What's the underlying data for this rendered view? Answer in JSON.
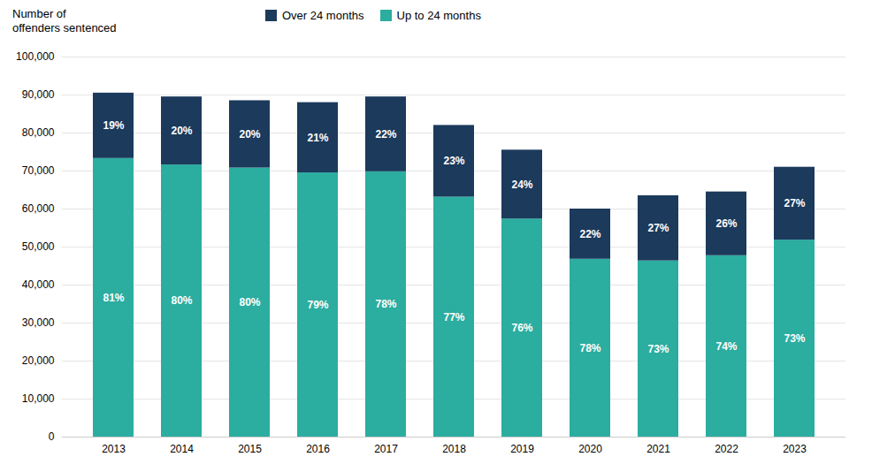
{
  "chart_data": {
    "type": "bar",
    "stacked": true,
    "categories": [
      "2013",
      "2014",
      "2015",
      "2016",
      "2017",
      "2018",
      "2019",
      "2020",
      "2021",
      "2022",
      "2023"
    ],
    "series": [
      {
        "name": "Up to 24 months",
        "color": "#2BADA0",
        "values": [
          73305,
          71600,
          70800,
          69520,
          69810,
          63140,
          57380,
          46800,
          46355,
          47730,
          51830
        ],
        "share_labels": [
          "81%",
          "80%",
          "80%",
          "79%",
          "78%",
          "77%",
          "76%",
          "78%",
          "73%",
          "74%",
          "73%"
        ]
      },
      {
        "name": "Over 24 months",
        "color": "#1B3A5C",
        "values": [
          17195,
          17900,
          17700,
          18480,
          19690,
          18860,
          18120,
          13200,
          17145,
          16770,
          19170
        ],
        "share_labels": [
          "19%",
          "20%",
          "20%",
          "21%",
          "22%",
          "23%",
          "24%",
          "22%",
          "27%",
          "26%",
          "27%"
        ]
      }
    ],
    "ylabel": "Number of\noffenders sentenced",
    "ylim": [
      0,
      100000
    ],
    "yticks": [
      0,
      {
        "value": 10000,
        "label": "10,000"
      },
      {
        "value": 20000,
        "label": "20,000"
      },
      {
        "value": 30000,
        "label": "30,000"
      },
      {
        "value": 40000,
        "label": "40,000"
      },
      {
        "value": 50000,
        "label": "50,000"
      },
      {
        "value": 60000,
        "label": "60,000"
      },
      {
        "value": 70000,
        "label": "70,000"
      },
      {
        "value": 80000,
        "label": "80,000"
      },
      {
        "value": 90000,
        "label": "90,000"
      },
      {
        "value": 100000,
        "label": "100,000"
      }
    ],
    "grid": true,
    "legend": "top"
  }
}
